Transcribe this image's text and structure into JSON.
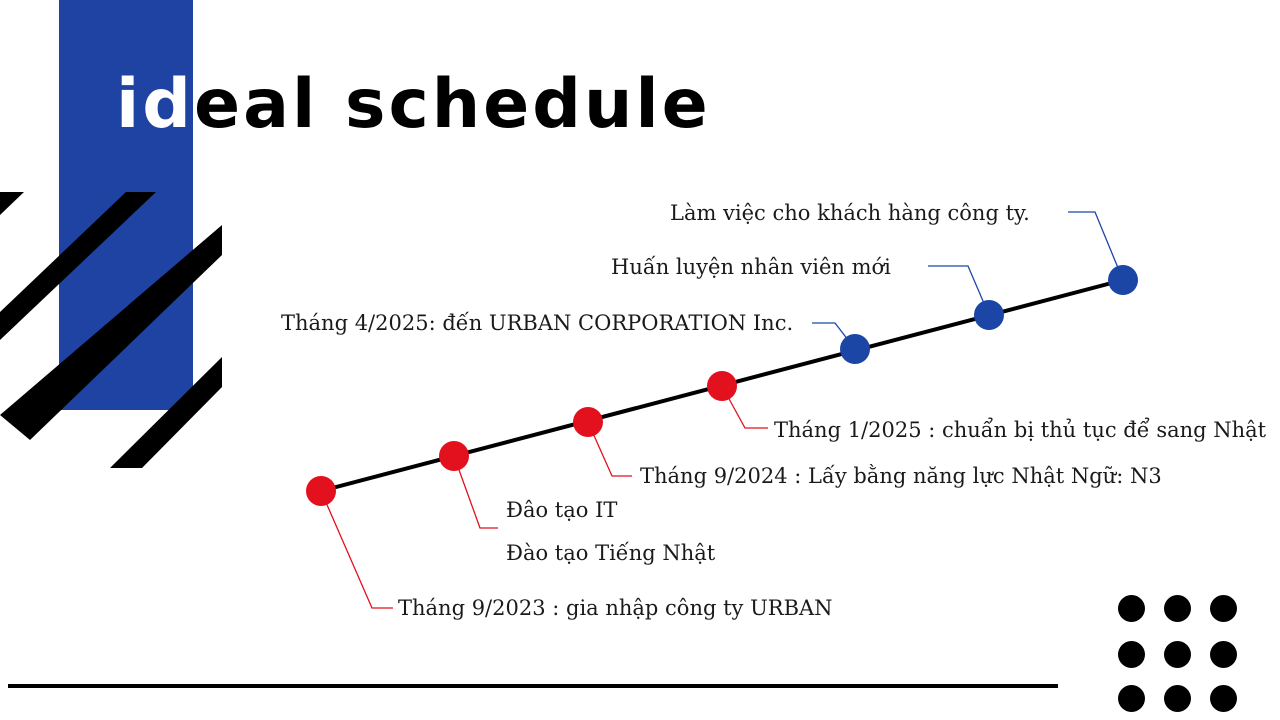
{
  "title": "ideal schedule",
  "colors": {
    "accent_blue": "#1f43a3",
    "marker_red": "#e3101e",
    "marker_blue": "#1b46a6",
    "line_black": "#000000"
  },
  "milestones": [
    {
      "label": "Tháng 9/2023 : gia nhập công ty URBAN",
      "status": "done"
    },
    {
      "label": "Đào tạo Tiếng Nhật",
      "label_2": "Đâo tạo IT",
      "status": "done"
    },
    {
      "label": "Tháng 9/2024 : Lấy bằng năng lực Nhật Ngữ: N3",
      "status": "done"
    },
    {
      "label": "Tháng 1/2025 : chuẩn bị thủ tục để sang Nhật",
      "status": "done"
    },
    {
      "label": "Tháng 4/2025: đến URBAN CORPORATION Inc.",
      "status": "planned"
    },
    {
      "label": "Huấn luyện nhân viên mới",
      "status": "planned"
    },
    {
      "label": "Làm việc cho khách hàng công ty.",
      "status": "planned"
    }
  ]
}
